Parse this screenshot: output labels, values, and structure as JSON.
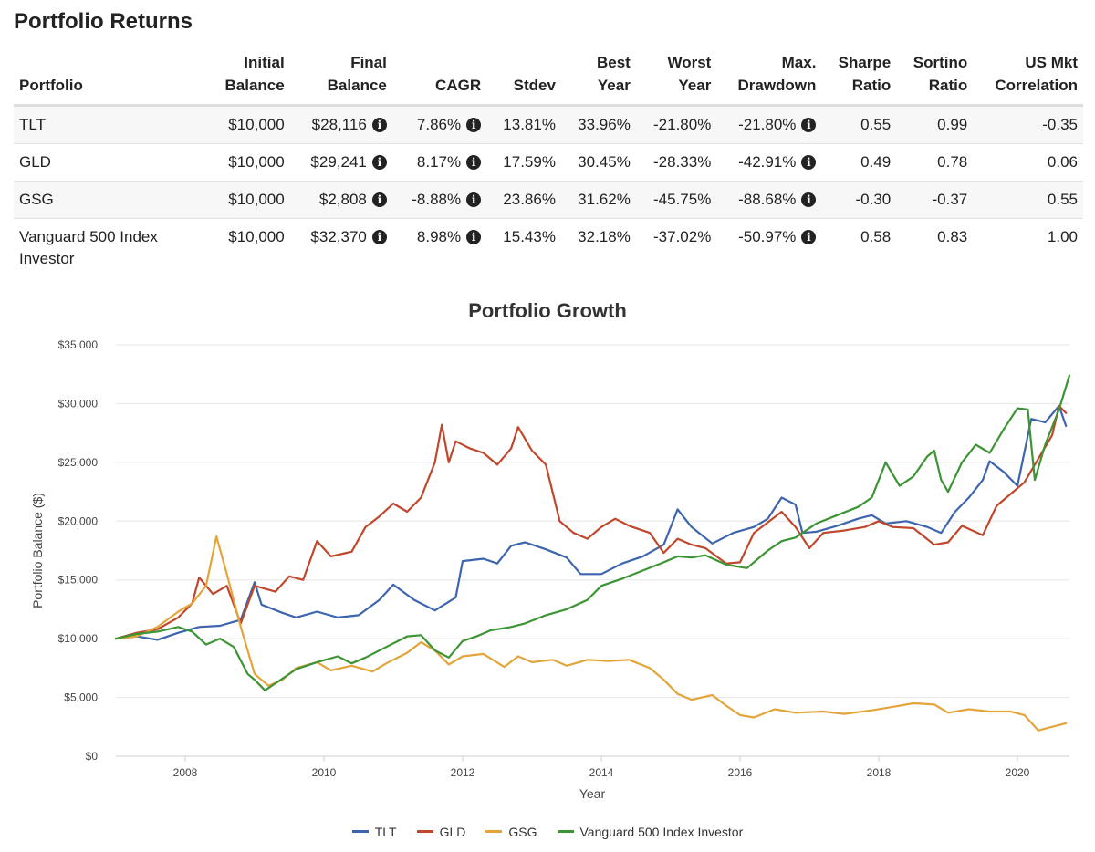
{
  "page_title": "Portfolio Returns",
  "table": {
    "headers": {
      "portfolio": "Portfolio",
      "initial_1": "Initial",
      "initial_2": "Balance",
      "final_1": "Final",
      "final_2": "Balance",
      "cagr": "CAGR",
      "stdev": "Stdev",
      "best_1": "Best",
      "best_2": "Year",
      "worst_1": "Worst",
      "worst_2": "Year",
      "maxdd_1": "Max.",
      "maxdd_2": "Drawdown",
      "sharpe_1": "Sharpe",
      "sharpe_2": "Ratio",
      "sortino_1": "Sortino",
      "sortino_2": "Ratio",
      "corr_1": "US Mkt",
      "corr_2": "Correlation"
    },
    "rows": [
      {
        "name": "TLT",
        "initial": "$10,000",
        "final": "$28,116",
        "cagr": "7.86%",
        "stdev": "13.81%",
        "best": "33.96%",
        "worst": "-21.80%",
        "maxdd": "-21.80%",
        "sharpe": "0.55",
        "sortino": "0.99",
        "corr": "-0.35"
      },
      {
        "name": "GLD",
        "initial": "$10,000",
        "final": "$29,241",
        "cagr": "8.17%",
        "stdev": "17.59%",
        "best": "30.45%",
        "worst": "-28.33%",
        "maxdd": "-42.91%",
        "sharpe": "0.49",
        "sortino": "0.78",
        "corr": "0.06"
      },
      {
        "name": "GSG",
        "initial": "$10,000",
        "final": "$2,808",
        "cagr": "-8.88%",
        "stdev": "23.86%",
        "best": "31.62%",
        "worst": "-45.75%",
        "maxdd": "-88.68%",
        "sharpe": "-0.30",
        "sortino": "-0.37",
        "corr": "0.55"
      },
      {
        "name": "Vanguard 500 Index Investor",
        "initial": "$10,000",
        "final": "$32,370",
        "cagr": "8.98%",
        "stdev": "15.43%",
        "best": "32.18%",
        "worst": "-37.02%",
        "maxdd": "-50.97%",
        "sharpe": "0.58",
        "sortino": "0.83",
        "corr": "1.00"
      }
    ]
  },
  "icons": {
    "info": "info-circle-icon",
    "info_glyph": "i"
  },
  "chart_data": {
    "type": "line",
    "title": "Portfolio Growth",
    "xlabel": "Year",
    "ylabel": "Portfolio Balance ($)",
    "xlim": [
      2007.0,
      2020.75
    ],
    "ylim": [
      0,
      35000
    ],
    "x_ticks": [
      2008,
      2010,
      2012,
      2014,
      2016,
      2018,
      2020
    ],
    "x_tick_labels": [
      "2008",
      "2010",
      "2012",
      "2014",
      "2016",
      "2018",
      "2020"
    ],
    "y_ticks": [
      0,
      5000,
      10000,
      15000,
      20000,
      25000,
      30000,
      35000
    ],
    "y_tick_labels": [
      "$0",
      "$5,000",
      "$10,000",
      "$15,000",
      "$20,000",
      "$25,000",
      "$30,000",
      "$35,000"
    ],
    "grid": true,
    "legend_position": "bottom-center",
    "series": [
      {
        "name": "TLT",
        "color": "#3c65ad",
        "points": [
          [
            2007.0,
            10000
          ],
          [
            2007.3,
            10200
          ],
          [
            2007.6,
            9900
          ],
          [
            2007.9,
            10500
          ],
          [
            2008.2,
            11000
          ],
          [
            2008.5,
            11100
          ],
          [
            2008.8,
            11600
          ],
          [
            2009.0,
            14800
          ],
          [
            2009.1,
            12900
          ],
          [
            2009.4,
            12200
          ],
          [
            2009.6,
            11800
          ],
          [
            2009.9,
            12300
          ],
          [
            2010.2,
            11800
          ],
          [
            2010.5,
            12000
          ],
          [
            2010.8,
            13300
          ],
          [
            2011.0,
            14600
          ],
          [
            2011.3,
            13300
          ],
          [
            2011.6,
            12400
          ],
          [
            2011.9,
            13500
          ],
          [
            2012.0,
            16600
          ],
          [
            2012.3,
            16800
          ],
          [
            2012.5,
            16400
          ],
          [
            2012.7,
            17900
          ],
          [
            2012.9,
            18200
          ],
          [
            2013.2,
            17600
          ],
          [
            2013.5,
            16900
          ],
          [
            2013.7,
            15500
          ],
          [
            2014.0,
            15500
          ],
          [
            2014.3,
            16400
          ],
          [
            2014.6,
            17000
          ],
          [
            2014.9,
            18000
          ],
          [
            2015.1,
            21000
          ],
          [
            2015.3,
            19500
          ],
          [
            2015.6,
            18100
          ],
          [
            2015.9,
            19000
          ],
          [
            2016.2,
            19500
          ],
          [
            2016.4,
            20200
          ],
          [
            2016.6,
            22000
          ],
          [
            2016.8,
            21400
          ],
          [
            2016.9,
            19000
          ],
          [
            2017.1,
            19100
          ],
          [
            2017.4,
            19600
          ],
          [
            2017.7,
            20200
          ],
          [
            2017.9,
            20500
          ],
          [
            2018.1,
            19800
          ],
          [
            2018.4,
            20000
          ],
          [
            2018.7,
            19500
          ],
          [
            2018.9,
            19000
          ],
          [
            2019.1,
            20800
          ],
          [
            2019.3,
            22000
          ],
          [
            2019.5,
            23500
          ],
          [
            2019.6,
            25100
          ],
          [
            2019.8,
            24200
          ],
          [
            2020.0,
            23000
          ],
          [
            2020.2,
            28700
          ],
          [
            2020.4,
            28400
          ],
          [
            2020.6,
            29800
          ],
          [
            2020.7,
            28100
          ]
        ]
      },
      {
        "name": "GLD",
        "color": "#c0472c",
        "points": [
          [
            2007.0,
            10000
          ],
          [
            2007.3,
            10500
          ],
          [
            2007.6,
            10800
          ],
          [
            2007.9,
            11800
          ],
          [
            2008.1,
            13000
          ],
          [
            2008.2,
            15200
          ],
          [
            2008.4,
            13800
          ],
          [
            2008.6,
            14500
          ],
          [
            2008.8,
            11300
          ],
          [
            2009.0,
            14500
          ],
          [
            2009.3,
            14000
          ],
          [
            2009.5,
            15300
          ],
          [
            2009.7,
            15000
          ],
          [
            2009.9,
            18300
          ],
          [
            2010.1,
            17000
          ],
          [
            2010.4,
            17400
          ],
          [
            2010.6,
            19500
          ],
          [
            2010.8,
            20400
          ],
          [
            2011.0,
            21500
          ],
          [
            2011.2,
            20800
          ],
          [
            2011.4,
            22000
          ],
          [
            2011.6,
            25000
          ],
          [
            2011.7,
            28200
          ],
          [
            2011.8,
            25000
          ],
          [
            2011.9,
            26800
          ],
          [
            2012.1,
            26200
          ],
          [
            2012.3,
            25800
          ],
          [
            2012.5,
            24800
          ],
          [
            2012.7,
            26200
          ],
          [
            2012.8,
            28000
          ],
          [
            2013.0,
            26000
          ],
          [
            2013.2,
            24800
          ],
          [
            2013.4,
            20000
          ],
          [
            2013.6,
            19000
          ],
          [
            2013.8,
            18500
          ],
          [
            2014.0,
            19500
          ],
          [
            2014.2,
            20200
          ],
          [
            2014.4,
            19600
          ],
          [
            2014.7,
            19000
          ],
          [
            2014.9,
            17300
          ],
          [
            2015.1,
            18500
          ],
          [
            2015.3,
            18000
          ],
          [
            2015.5,
            17700
          ],
          [
            2015.8,
            16400
          ],
          [
            2016.0,
            16500
          ],
          [
            2016.2,
            19000
          ],
          [
            2016.4,
            19900
          ],
          [
            2016.6,
            20800
          ],
          [
            2016.8,
            19500
          ],
          [
            2017.0,
            17700
          ],
          [
            2017.2,
            19000
          ],
          [
            2017.5,
            19200
          ],
          [
            2017.8,
            19500
          ],
          [
            2018.0,
            20000
          ],
          [
            2018.2,
            19500
          ],
          [
            2018.5,
            19400
          ],
          [
            2018.8,
            18000
          ],
          [
            2019.0,
            18200
          ],
          [
            2019.2,
            19600
          ],
          [
            2019.5,
            18800
          ],
          [
            2019.7,
            21300
          ],
          [
            2019.9,
            22300
          ],
          [
            2020.1,
            23300
          ],
          [
            2020.3,
            25300
          ],
          [
            2020.5,
            27300
          ],
          [
            2020.6,
            29800
          ],
          [
            2020.7,
            29200
          ]
        ]
      },
      {
        "name": "GSG",
        "color": "#e3a53a",
        "points": [
          [
            2007.0,
            10000
          ],
          [
            2007.3,
            10200
          ],
          [
            2007.6,
            11000
          ],
          [
            2007.9,
            12300
          ],
          [
            2008.1,
            13000
          ],
          [
            2008.3,
            14500
          ],
          [
            2008.45,
            18700
          ],
          [
            2008.6,
            15500
          ],
          [
            2008.8,
            11000
          ],
          [
            2008.9,
            9000
          ],
          [
            2009.0,
            7000
          ],
          [
            2009.2,
            6000
          ],
          [
            2009.4,
            6500
          ],
          [
            2009.6,
            7500
          ],
          [
            2009.9,
            8000
          ],
          [
            2010.1,
            7300
          ],
          [
            2010.4,
            7700
          ],
          [
            2010.7,
            7200
          ],
          [
            2010.9,
            7900
          ],
          [
            2011.2,
            8800
          ],
          [
            2011.4,
            9700
          ],
          [
            2011.6,
            9000
          ],
          [
            2011.8,
            7800
          ],
          [
            2012.0,
            8500
          ],
          [
            2012.3,
            8700
          ],
          [
            2012.6,
            7600
          ],
          [
            2012.8,
            8500
          ],
          [
            2013.0,
            8000
          ],
          [
            2013.3,
            8200
          ],
          [
            2013.5,
            7700
          ],
          [
            2013.8,
            8200
          ],
          [
            2014.1,
            8100
          ],
          [
            2014.4,
            8200
          ],
          [
            2014.7,
            7500
          ],
          [
            2014.9,
            6500
          ],
          [
            2015.1,
            5300
          ],
          [
            2015.3,
            4800
          ],
          [
            2015.6,
            5200
          ],
          [
            2015.8,
            4300
          ],
          [
            2016.0,
            3500
          ],
          [
            2016.2,
            3300
          ],
          [
            2016.5,
            4000
          ],
          [
            2016.8,
            3700
          ],
          [
            2017.2,
            3800
          ],
          [
            2017.5,
            3600
          ],
          [
            2017.9,
            3900
          ],
          [
            2018.2,
            4200
          ],
          [
            2018.5,
            4500
          ],
          [
            2018.8,
            4400
          ],
          [
            2019.0,
            3700
          ],
          [
            2019.3,
            4000
          ],
          [
            2019.6,
            3800
          ],
          [
            2019.9,
            3800
          ],
          [
            2020.1,
            3500
          ],
          [
            2020.3,
            2200
          ],
          [
            2020.5,
            2500
          ],
          [
            2020.7,
            2800
          ]
        ]
      },
      {
        "name": "Vanguard 500 Index Investor",
        "color": "#3c9434",
        "points": [
          [
            2007.0,
            10000
          ],
          [
            2007.3,
            10400
          ],
          [
            2007.6,
            10600
          ],
          [
            2007.9,
            11000
          ],
          [
            2008.1,
            10600
          ],
          [
            2008.3,
            9500
          ],
          [
            2008.5,
            10000
          ],
          [
            2008.7,
            9300
          ],
          [
            2008.9,
            7000
          ],
          [
            2009.0,
            6500
          ],
          [
            2009.15,
            5600
          ],
          [
            2009.3,
            6200
          ],
          [
            2009.6,
            7400
          ],
          [
            2009.9,
            8000
          ],
          [
            2010.2,
            8500
          ],
          [
            2010.4,
            7900
          ],
          [
            2010.6,
            8400
          ],
          [
            2010.9,
            9300
          ],
          [
            2011.2,
            10200
          ],
          [
            2011.4,
            10300
          ],
          [
            2011.6,
            9000
          ],
          [
            2011.8,
            8400
          ],
          [
            2012.0,
            9800
          ],
          [
            2012.2,
            10200
          ],
          [
            2012.4,
            10700
          ],
          [
            2012.7,
            11000
          ],
          [
            2012.9,
            11300
          ],
          [
            2013.2,
            12000
          ],
          [
            2013.5,
            12500
          ],
          [
            2013.8,
            13300
          ],
          [
            2014.0,
            14500
          ],
          [
            2014.3,
            15100
          ],
          [
            2014.6,
            15800
          ],
          [
            2014.9,
            16500
          ],
          [
            2015.1,
            17000
          ],
          [
            2015.3,
            16900
          ],
          [
            2015.5,
            17100
          ],
          [
            2015.8,
            16300
          ],
          [
            2016.1,
            16000
          ],
          [
            2016.4,
            17500
          ],
          [
            2016.6,
            18300
          ],
          [
            2016.8,
            18600
          ],
          [
            2017.1,
            19800
          ],
          [
            2017.4,
            20500
          ],
          [
            2017.7,
            21200
          ],
          [
            2017.9,
            22000
          ],
          [
            2018.0,
            23500
          ],
          [
            2018.1,
            25000
          ],
          [
            2018.3,
            23000
          ],
          [
            2018.5,
            23800
          ],
          [
            2018.7,
            25500
          ],
          [
            2018.8,
            26000
          ],
          [
            2018.9,
            23500
          ],
          [
            2019.0,
            22500
          ],
          [
            2019.2,
            25000
          ],
          [
            2019.4,
            26500
          ],
          [
            2019.6,
            25800
          ],
          [
            2019.8,
            27800
          ],
          [
            2020.0,
            29600
          ],
          [
            2020.15,
            29500
          ],
          [
            2020.25,
            23500
          ],
          [
            2020.4,
            26500
          ],
          [
            2020.6,
            29500
          ],
          [
            2020.75,
            32400
          ]
        ]
      }
    ]
  }
}
